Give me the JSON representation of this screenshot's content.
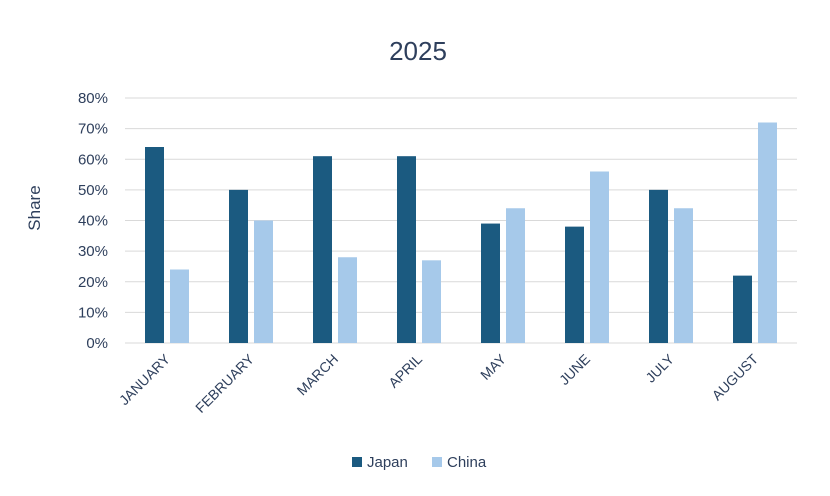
{
  "chart_data": {
    "type": "bar",
    "title": "2025",
    "xlabel": "",
    "ylabel": "Share",
    "ylim": [
      0,
      80
    ],
    "yticks": [
      "0%",
      "10%",
      "20%",
      "30%",
      "40%",
      "50%",
      "60%",
      "70%",
      "80%"
    ],
    "grid": true,
    "legend_position": "bottom",
    "categories": [
      "JANUARY",
      "FEBRUARY",
      "MARCH",
      "APRIL",
      "MAY",
      "JUNE",
      "JULY",
      "AUGUST"
    ],
    "series": [
      {
        "name": "Japan",
        "color": "#1b5a80",
        "values": [
          64,
          50,
          61,
          61,
          39,
          38,
          50,
          22
        ]
      },
      {
        "name": "China",
        "color": "#a6c9ea",
        "values": [
          24,
          40,
          28,
          27,
          44,
          56,
          44,
          72
        ]
      }
    ]
  }
}
